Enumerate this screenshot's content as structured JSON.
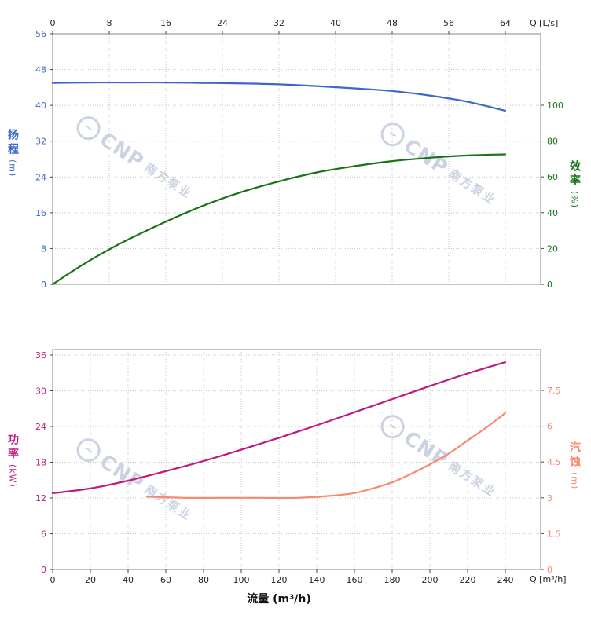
{
  "watermark": {
    "logo_glyph": "~",
    "logo_text": "CNP",
    "company": "南方泵业"
  },
  "axes": {
    "top": {
      "title": "Q [L/s]",
      "ticks": [
        0,
        8,
        16,
        24,
        32,
        40,
        48,
        56,
        64
      ],
      "color": "#222222"
    },
    "bottom": {
      "title": "Q [m³/h]",
      "xlabel": "流量 (m³/h)",
      "ticks": [
        0,
        20,
        40,
        60,
        80,
        100,
        120,
        140,
        160,
        180,
        200,
        220,
        240
      ],
      "color": "#222222"
    },
    "head": {
      "label": "扬程",
      "unit": "(m)",
      "ticks": [
        0,
        8,
        16,
        24,
        32,
        40,
        48,
        56
      ],
      "range": [
        0,
        56
      ],
      "color": "#3b68c9"
    },
    "efficiency": {
      "label": "效率",
      "unit": "(%)",
      "ticks": [
        0,
        20,
        40,
        60,
        80,
        100
      ],
      "range": [
        0,
        140
      ],
      "color": "#177317"
    },
    "power": {
      "label": "功率",
      "unit": "(kW)",
      "ticks": [
        0,
        6,
        12,
        18,
        24,
        30,
        36
      ],
      "range": [
        0,
        36
      ],
      "color": "#bf1a7e"
    },
    "npsh": {
      "label": "汽蚀",
      "unit": "(m)",
      "ticks": [
        0,
        1.5,
        3,
        4.5,
        6,
        7.5
      ],
      "range": [
        0,
        9
      ],
      "color": "#f58a6e"
    }
  },
  "chart_data": [
    {
      "type": "line",
      "title": "Head and Efficiency vs Flow",
      "x_units": "m³/h",
      "x_range": [
        0,
        258
      ],
      "grid": true,
      "series": [
        {
          "name": "扬程 (Head)",
          "unit": "m",
          "color": "#3b68c9",
          "y_axis": "head",
          "y_range": [
            0,
            56
          ],
          "x": [
            0,
            20,
            40,
            60,
            80,
            100,
            120,
            140,
            160,
            180,
            200,
            220,
            240
          ],
          "y": [
            45.0,
            45.1,
            45.1,
            45.1,
            45.0,
            44.9,
            44.7,
            44.3,
            43.8,
            43.2,
            42.2,
            40.8,
            38.8
          ]
        },
        {
          "name": "效率 (Efficiency)",
          "unit": "%",
          "color": "#177317",
          "y_axis": "efficiency",
          "y_range": [
            0,
            140
          ],
          "x": [
            0,
            10,
            20,
            30,
            40,
            60,
            80,
            100,
            120,
            140,
            160,
            180,
            200,
            220,
            240
          ],
          "y": [
            0,
            7,
            13.5,
            19.5,
            25,
            35,
            44,
            51.5,
            57.5,
            62.5,
            66,
            68.8,
            70.7,
            72,
            72.6
          ]
        }
      ]
    },
    {
      "type": "line",
      "title": "Power and NPSH vs Flow",
      "x_units": "m³/h",
      "x_range": [
        0,
        258
      ],
      "grid": true,
      "series": [
        {
          "name": "功率 (Power)",
          "unit": "kW",
          "color": "#bf1a7e",
          "y_axis": "power",
          "y_range": [
            0,
            36
          ],
          "x": [
            0,
            20,
            40,
            60,
            80,
            100,
            120,
            140,
            160,
            180,
            200,
            220,
            240
          ],
          "y": [
            12.8,
            13.6,
            14.9,
            16.5,
            18.2,
            20.1,
            22.1,
            24.2,
            26.4,
            28.6,
            30.8,
            32.9,
            34.8
          ]
        },
        {
          "name": "汽蚀 (NPSH)",
          "unit": "m",
          "color": "#f58a6e",
          "y_axis": "npsh",
          "y_range": [
            0,
            9
          ],
          "x": [
            50,
            70,
            90,
            110,
            130,
            150,
            160,
            170,
            180,
            190,
            200,
            210,
            220,
            230,
            240
          ],
          "y": [
            3.05,
            3.0,
            3.0,
            3.0,
            3.0,
            3.1,
            3.2,
            3.4,
            3.65,
            4.0,
            4.4,
            4.85,
            5.4,
            5.95,
            6.55
          ]
        }
      ]
    }
  ]
}
